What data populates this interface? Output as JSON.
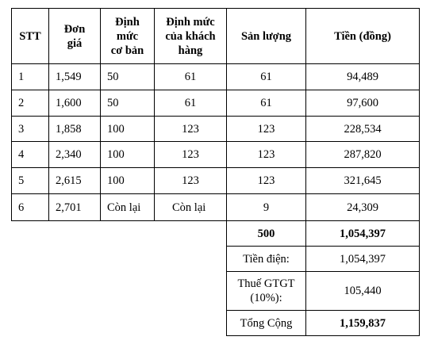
{
  "table": {
    "headers": [
      "STT",
      "Đơn\ngiá",
      "Định\nmức\ncơ bản",
      "Định mức\ncủa khách\nhàng",
      "Sản lượng",
      "Tiền (đồng)"
    ],
    "rows": [
      [
        "1",
        "1,549",
        "50",
        "61",
        "61",
        "94,489"
      ],
      [
        "2",
        "1,600",
        "50",
        "61",
        "61",
        "97,600"
      ],
      [
        "3",
        "1,858",
        "100",
        "123",
        "123",
        "228,534"
      ],
      [
        "4",
        "2,340",
        "100",
        "123",
        "123",
        "287,820"
      ],
      [
        "5",
        "2,615",
        "100",
        "123",
        "123",
        "321,645"
      ],
      [
        "6",
        "2,701",
        "Còn lại",
        "Còn lại",
        "9",
        "24,309"
      ]
    ]
  },
  "summary": {
    "total_output": "500",
    "total_amount": "1,054,397",
    "electricity_label": "Tiền điện:",
    "electricity_value": "1,054,397",
    "vat_label": "Thuế GTGT\n(10%):",
    "vat_value": "105,440",
    "grand_total_label": "Tổng Cộng",
    "grand_total_value": "1,159,837"
  }
}
